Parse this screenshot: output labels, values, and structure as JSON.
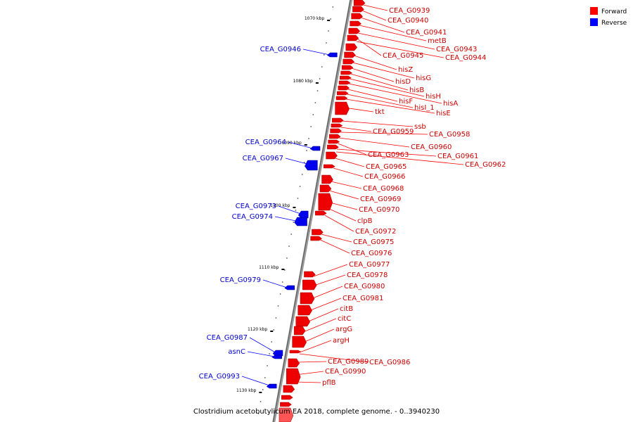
{
  "caption": "Clostridium acetobutylicum EA 2018, complete genome. - 0..3940230",
  "legend": [
    {
      "label": "Forward",
      "color": "#ff0000"
    },
    {
      "label": "Reverse",
      "color": "#0000ff"
    }
  ],
  "ticks": [
    "1070 kbp",
    "1080 kbp",
    "1090 kbp",
    "1100 kbp",
    "1110 kbp",
    "1120 kbp",
    "1130 kbp"
  ],
  "forward_genes": [
    "CEA_G0939",
    "CEA_G0940",
    "CEA_G0941",
    "metB",
    "CEA_G0943",
    "CEA_G0945",
    "CEA_G0944",
    "hisZ",
    "hisG",
    "hisD",
    "hisB",
    "hisH",
    "hisA",
    "hisF",
    "hisI_1",
    "hisE",
    "tkt",
    "ssb",
    "CEA_G0959",
    "CEA_G0958",
    "CEA_G0960",
    "CEA_G0963",
    "CEA_G0961",
    "CEA_G0962",
    "CEA_G0965",
    "CEA_G0966",
    "CEA_G0968",
    "CEA_G0969",
    "CEA_G0970",
    "clpB",
    "CEA_G0972",
    "CEA_G0975",
    "CEA_G0976",
    "CEA_G0977",
    "CEA_G0978",
    "CEA_G0980",
    "CEA_G0981",
    "citB",
    "citC",
    "argG",
    "argH",
    "CEA_G0989",
    "CEA_G0986",
    "CEA_G0990",
    "pflB"
  ],
  "reverse_genes": [
    "CEA_G0946",
    "CEA_G0964",
    "CEA_G0967",
    "CEA_G0973",
    "CEA_G0974",
    "CEA_G0979",
    "CEA_G0987",
    "asnC",
    "CEA_G0993"
  ]
}
